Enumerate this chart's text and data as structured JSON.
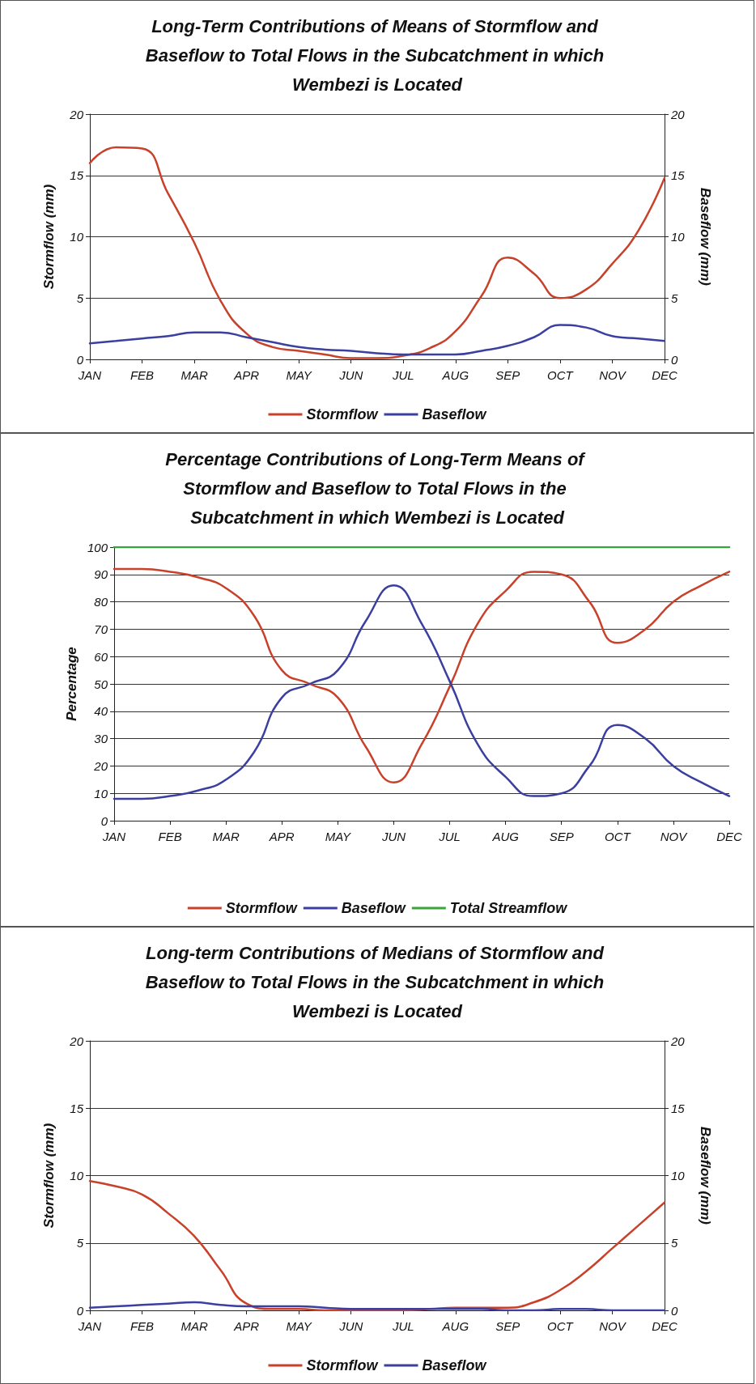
{
  "chart_data": [
    {
      "type": "line",
      "title": "Long-Term Contributions of Means of Stormflow and Baseflow to Total Flows in the Subcatchment in which Wembezi is Located",
      "ylabel": "Stormflow (mm)",
      "y2label": "Baseflow (mm)",
      "ylim": [
        0,
        20
      ],
      "yticks": [
        0,
        5,
        10,
        15,
        20
      ],
      "y2lim": [
        0,
        20
      ],
      "y2ticks": [
        0,
        5,
        10,
        15,
        20
      ],
      "grid": "y",
      "legend": "bottom",
      "marker": "none",
      "categories": [
        "JAN",
        null,
        "FEB",
        null,
        "MAR",
        null,
        "APR",
        null,
        "MAY",
        null,
        "JUN",
        null,
        "JUL",
        null,
        "AUG",
        null,
        "SEP",
        null,
        "OCT",
        null,
        "NOV",
        null,
        "DEC"
      ],
      "series": [
        {
          "name": "Stormflow",
          "color": "#c8412b",
          "values": [
            16,
            17.3,
            17.2,
            13.5,
            9.5,
            4.8,
            2.1,
            1.0,
            0.7,
            0.4,
            0.1,
            0.1,
            0.3,
            0.9,
            2.3,
            5.2,
            8.3,
            7,
            5,
            5.7,
            7.8,
            10.5,
            14.8
          ]
        },
        {
          "name": "Baseflow",
          "color": "#3a3fa0",
          "axis": "y2",
          "values": [
            1.3,
            1.5,
            1.7,
            1.9,
            2.2,
            2.2,
            1.8,
            1.4,
            1.0,
            0.8,
            0.7,
            0.5,
            0.4,
            0.4,
            0.4,
            0.7,
            1.1,
            1.8,
            2.8,
            2.6,
            1.9,
            1.7,
            1.5
          ]
        }
      ]
    },
    {
      "type": "line",
      "title": "Percentage Contributions of Long-Term Means of Stormflow and Baseflow to Total Flows in the Subcatchment in which Wembezi is Located",
      "ylabel": "Percentage",
      "ylim": [
        0,
        100
      ],
      "yticks": [
        0,
        10,
        20,
        30,
        40,
        50,
        60,
        70,
        80,
        90,
        100
      ],
      "grid": "y",
      "legend": "bottom",
      "marker": "none",
      "categories": [
        "JAN",
        null,
        "FEB",
        null,
        "MAR",
        null,
        "APR",
        null,
        "MAY",
        null,
        "JUN",
        null,
        "JUL",
        null,
        "AUG",
        null,
        "SEP",
        null,
        "OCT",
        null,
        "NOV",
        null,
        "DEC"
      ],
      "series": [
        {
          "name": "Stormflow",
          "color": "#c8412b",
          "values": [
            92,
            92,
            91,
            89,
            85,
            75,
            55,
            50,
            45,
            27,
            14,
            28,
            49,
            72,
            84,
            91,
            90,
            80,
            65,
            70,
            80,
            86,
            91
          ]
        },
        {
          "name": "Baseflow",
          "color": "#3a3fa0",
          "values": [
            8,
            8,
            9,
            11,
            15,
            25,
            45,
            50,
            55,
            73,
            86,
            72,
            51,
            28,
            16,
            9,
            10,
            20,
            35,
            30,
            20,
            14,
            9
          ]
        },
        {
          "name": "Total Streamflow",
          "color": "#3aa63a",
          "values": [
            100,
            100,
            100,
            100,
            100,
            100,
            100,
            100,
            100,
            100,
            100,
            100,
            100,
            100,
            100,
            100,
            100,
            100,
            100,
            100,
            100,
            100,
            100
          ]
        }
      ]
    },
    {
      "type": "line",
      "title": "Long-term Contributions of Medians of Stormflow and Baseflow to Total Flows in the Subcatchment in which Wembezi is Located",
      "ylabel": "Stormflow (mm)",
      "y2label": "Baseflow (mm)",
      "ylim": [
        0,
        20
      ],
      "yticks": [
        0,
        5,
        10,
        15,
        20
      ],
      "y2lim": [
        0,
        20
      ],
      "y2ticks": [
        0,
        5,
        10,
        15,
        20
      ],
      "grid": "y",
      "legend": "bottom",
      "marker": "none",
      "categories": [
        "JAN",
        null,
        "FEB",
        null,
        "MAR",
        null,
        "APR",
        null,
        "MAY",
        null,
        "JUN",
        null,
        "JUL",
        null,
        "AUG",
        null,
        "SEP",
        null,
        "OCT",
        null,
        "NOV",
        null,
        "DEC"
      ],
      "series": [
        {
          "name": "Stormflow",
          "color": "#c8412b",
          "values": [
            9.6,
            9.2,
            8.6,
            7.2,
            5.5,
            3.0,
            0.5,
            0.1,
            0.1,
            0,
            0,
            0,
            0,
            0.1,
            0.2,
            0.2,
            0.2,
            0.6,
            1.5,
            2.9,
            4.6,
            6.3,
            8.0
          ]
        },
        {
          "name": "Baseflow",
          "color": "#3a3fa0",
          "axis": "y2",
          "values": [
            0.2,
            0.3,
            0.4,
            0.5,
            0.6,
            0.4,
            0.3,
            0.3,
            0.3,
            0.2,
            0.1,
            0.1,
            0.1,
            0.1,
            0.1,
            0.1,
            0,
            0,
            0.1,
            0.1,
            0,
            0,
            0
          ]
        }
      ]
    }
  ]
}
